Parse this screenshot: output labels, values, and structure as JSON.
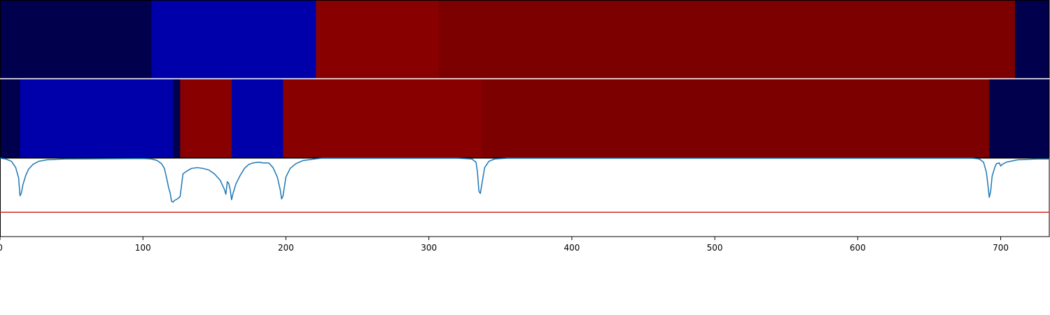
{
  "chart_data": {
    "type": "heatmap",
    "xlim": [
      0,
      734
    ],
    "colors": {
      "dark_navy": "#00004d",
      "blue": "#0000aa",
      "red": "#880000",
      "dark_red": "#7d0000",
      "line": "#1f77b4",
      "threshold_line": "#d62728",
      "divider": "#ffffff"
    },
    "tracks": [
      {
        "segments": [
          {
            "start": 0,
            "end": 106,
            "color": "dark_navy"
          },
          {
            "start": 106,
            "end": 221,
            "color": "blue"
          },
          {
            "start": 221,
            "end": 307,
            "color": "red"
          },
          {
            "start": 307,
            "end": 710,
            "color": "dark_red"
          },
          {
            "start": 710,
            "end": 734,
            "color": "dark_navy"
          }
        ]
      },
      {
        "segments": [
          {
            "start": 0,
            "end": 14,
            "color": "dark_navy"
          },
          {
            "start": 14,
            "end": 121,
            "color": "blue"
          },
          {
            "start": 121,
            "end": 126,
            "color": "dark_navy"
          },
          {
            "start": 126,
            "end": 162,
            "color": "red"
          },
          {
            "start": 162,
            "end": 198,
            "color": "blue"
          },
          {
            "start": 198,
            "end": 337,
            "color": "red"
          },
          {
            "start": 337,
            "end": 692,
            "color": "dark_red"
          },
          {
            "start": 692,
            "end": 734,
            "color": "dark_navy"
          }
        ]
      }
    ],
    "line_plot": {
      "type": "line",
      "ylim": [
        0,
        1
      ],
      "threshold": 0.31,
      "points": [
        [
          0,
          1.0
        ],
        [
          4,
          0.99
        ],
        [
          8,
          0.96
        ],
        [
          11,
          0.88
        ],
        [
          13,
          0.75
        ],
        [
          14,
          0.52
        ],
        [
          15,
          0.56
        ],
        [
          16,
          0.66
        ],
        [
          17,
          0.72
        ],
        [
          18,
          0.78
        ],
        [
          20,
          0.86
        ],
        [
          23,
          0.92
        ],
        [
          27,
          0.96
        ],
        [
          33,
          0.98
        ],
        [
          45,
          0.99
        ],
        [
          100,
          0.995
        ],
        [
          106,
          0.99
        ],
        [
          110,
          0.97
        ],
        [
          113,
          0.93
        ],
        [
          115,
          0.87
        ],
        [
          116,
          0.79
        ],
        [
          117,
          0.71
        ],
        [
          118,
          0.62
        ],
        [
          119,
          0.56
        ],
        [
          120,
          0.45
        ],
        [
          121,
          0.44
        ],
        [
          122,
          0.46
        ],
        [
          124,
          0.48
        ],
        [
          126,
          0.51
        ],
        [
          128,
          0.8
        ],
        [
          131,
          0.84
        ],
        [
          134,
          0.87
        ],
        [
          138,
          0.88
        ],
        [
          142,
          0.87
        ],
        [
          146,
          0.85
        ],
        [
          150,
          0.8
        ],
        [
          154,
          0.72
        ],
        [
          157,
          0.6
        ],
        [
          158,
          0.54
        ],
        [
          159,
          0.7
        ],
        [
          160,
          0.68
        ],
        [
          161,
          0.6
        ],
        [
          162,
          0.47
        ],
        [
          163,
          0.55
        ],
        [
          165,
          0.67
        ],
        [
          168,
          0.78
        ],
        [
          171,
          0.87
        ],
        [
          174,
          0.92
        ],
        [
          177,
          0.94
        ],
        [
          181,
          0.95
        ],
        [
          184,
          0.94
        ],
        [
          188,
          0.94
        ],
        [
          191,
          0.88
        ],
        [
          194,
          0.76
        ],
        [
          196,
          0.6
        ],
        [
          197,
          0.48
        ],
        [
          198,
          0.52
        ],
        [
          200,
          0.76
        ],
        [
          203,
          0.87
        ],
        [
          207,
          0.93
        ],
        [
          212,
          0.97
        ],
        [
          220,
          0.99
        ],
        [
          225,
          1.0
        ],
        [
          320,
          1.0
        ],
        [
          330,
          0.99
        ],
        [
          333,
          0.95
        ],
        [
          334,
          0.82
        ],
        [
          335,
          0.58
        ],
        [
          336,
          0.55
        ],
        [
          337,
          0.66
        ],
        [
          339,
          0.88
        ],
        [
          342,
          0.96
        ],
        [
          346,
          0.99
        ],
        [
          355,
          1.0
        ],
        [
          680,
          1.0
        ],
        [
          685,
          0.99
        ],
        [
          688,
          0.95
        ],
        [
          690,
          0.82
        ],
        [
          691,
          0.67
        ],
        [
          692,
          0.5
        ],
        [
          693,
          0.58
        ],
        [
          694,
          0.77
        ],
        [
          696,
          0.89
        ],
        [
          697,
          0.93
        ],
        [
          699,
          0.94
        ],
        [
          700,
          0.9
        ],
        [
          701,
          0.92
        ],
        [
          704,
          0.95
        ],
        [
          712,
          0.98
        ],
        [
          725,
          0.99
        ],
        [
          734,
          0.99
        ]
      ]
    },
    "x_ticks": [
      "0",
      "100",
      "200",
      "300",
      "400",
      "500",
      "600",
      "700"
    ]
  }
}
